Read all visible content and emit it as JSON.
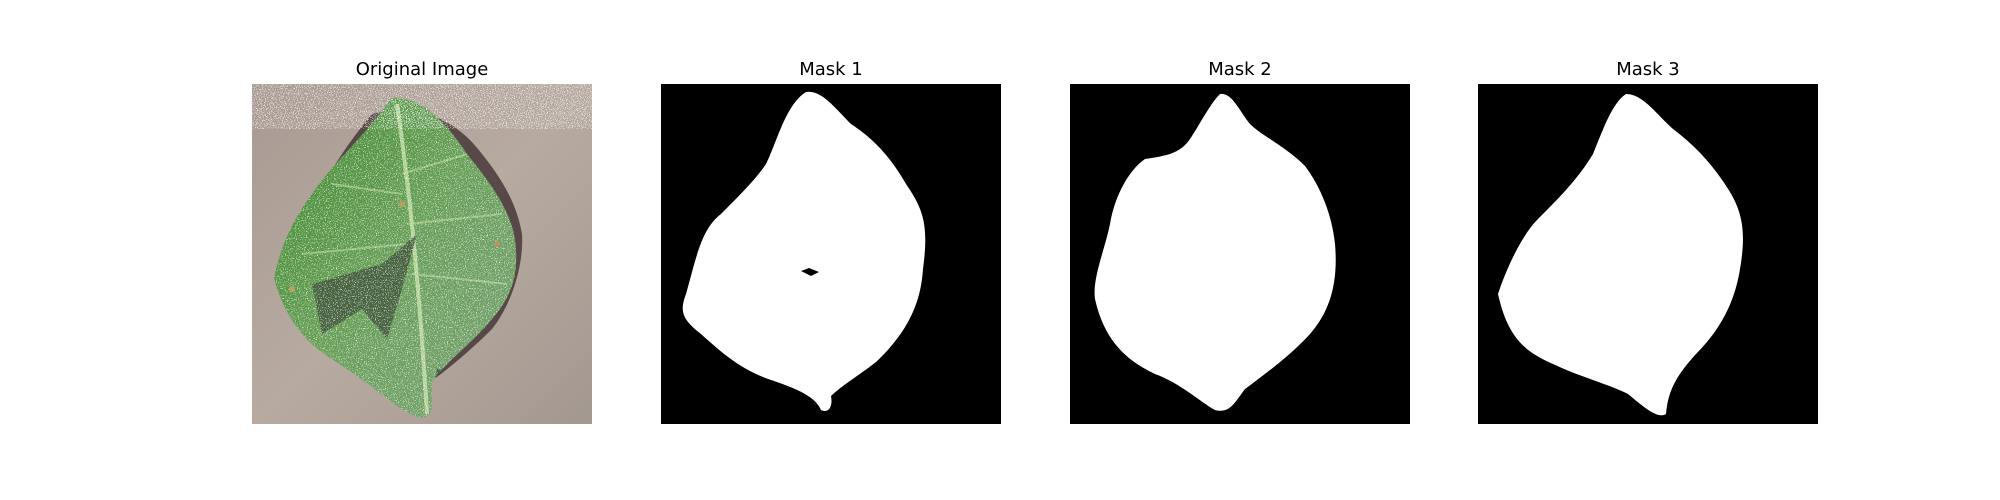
{
  "panels": [
    {
      "title": "Original Image",
      "content": "leaf-photo",
      "colors": {
        "background": "#b3a69d",
        "leaf": "#4f8a3a",
        "leaf_highlight": "#cfe0c6",
        "shadow": "#3c3c38",
        "noise": "#ffffff"
      }
    },
    {
      "title": "Mask 1",
      "content": "mask",
      "colors": {
        "background": "#000000",
        "foreground": "#ffffff"
      }
    },
    {
      "title": "Mask 2",
      "content": "mask",
      "colors": {
        "background": "#000000",
        "foreground": "#ffffff"
      }
    },
    {
      "title": "Mask 3",
      "content": "mask",
      "colors": {
        "background": "#000000",
        "foreground": "#ffffff"
      }
    }
  ]
}
